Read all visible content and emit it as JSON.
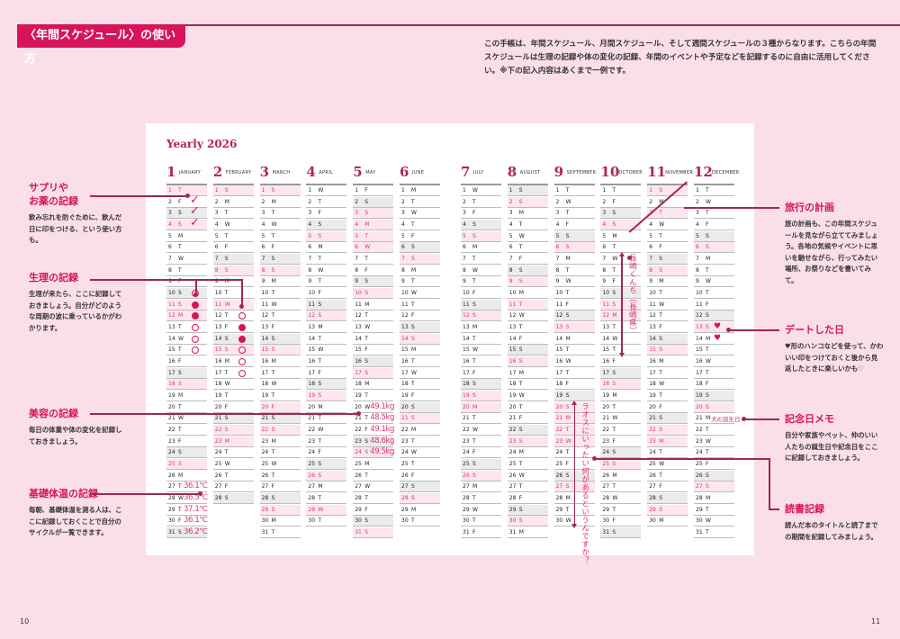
{
  "header": {
    "title": "〈年間スケジュール〉の使い方",
    "intro": "この手帳は、年間スケジュール、月間スケジュール、そして週間スケジュールの３種からなります。こちらの年間スケジュールは生理の記録や体の変化の記録、年間のイベントや予定などを記録するのに自由に活用してください。※下の記入内容はあくまで一例です。"
  },
  "calendar": {
    "title": "Yearly 2026",
    "year": 2026,
    "weekdays": [
      "S",
      "M",
      "T",
      "W",
      "T",
      "F",
      "S"
    ],
    "months": [
      {
        "num": "1",
        "name": "JANUARY"
      },
      {
        "num": "2",
        "name": "FEBRUARY"
      },
      {
        "num": "3",
        "name": "MARCH"
      },
      {
        "num": "4",
        "name": "APRIL"
      },
      {
        "num": "5",
        "name": "MAY"
      },
      {
        "num": "6",
        "name": "JUNE"
      },
      {
        "num": "7",
        "name": "JULY"
      },
      {
        "num": "8",
        "name": "AUGUST"
      },
      {
        "num": "9",
        "name": "SEPTEMBER"
      },
      {
        "num": "10",
        "name": "OCTOBER"
      },
      {
        "num": "11",
        "name": "NOVEMBER"
      },
      {
        "num": "12",
        "name": "DECEMBER"
      }
    ],
    "holidays": [
      "1-1",
      "1-12",
      "2-11",
      "2-23",
      "3-20",
      "4-29",
      "5-3",
      "5-4",
      "5-5",
      "5-6",
      "7-20",
      "8-11",
      "9-21",
      "9-22",
      "9-23",
      "10-12",
      "11-3",
      "11-23"
    ],
    "colors": {
      "accent": "#d7135b",
      "holiday_bg": "#fde6ec",
      "saturday_bg": "#ebebeb",
      "line": "#a0284f"
    }
  },
  "entries": {
    "supplement_checks": [
      "1-2",
      "1-3",
      "1-4"
    ],
    "period_marks": [
      {
        "date": "1-10",
        "filled": false
      },
      {
        "date": "1-11",
        "filled": true
      },
      {
        "date": "1-12",
        "filled": true
      },
      {
        "date": "1-13",
        "filled": false
      },
      {
        "date": "1-14",
        "filled": false
      },
      {
        "date": "1-15",
        "filled": false
      },
      {
        "date": "2-12",
        "filled": false
      },
      {
        "date": "2-13",
        "filled": true
      },
      {
        "date": "2-14",
        "filled": true
      },
      {
        "date": "2-15",
        "filled": false
      },
      {
        "date": "2-16",
        "filled": false
      },
      {
        "date": "2-17",
        "filled": false
      }
    ],
    "weights": [
      {
        "date": "5-20",
        "text": "49.1kg"
      },
      {
        "date": "5-21",
        "text": "48.5kg"
      },
      {
        "date": "5-22",
        "text": "49.1kg"
      },
      {
        "date": "5-23",
        "text": "48.6kg"
      },
      {
        "date": "5-24",
        "text": "49.5kg"
      }
    ],
    "temperatures": [
      {
        "date": "1-27",
        "text": "36.1℃"
      },
      {
        "date": "1-28",
        "text": "36.5℃"
      },
      {
        "date": "1-29",
        "text": "37.1℃"
      },
      {
        "date": "1-30",
        "text": "36.1℃"
      },
      {
        "date": "1-31",
        "text": "36.2℃"
      }
    ],
    "travel": {
      "text": "長崎くんち（長崎県）",
      "from": "10-7",
      "to": "10-15"
    },
    "reading": {
      "text": "ラオスにいったい何があるというんですか？",
      "from": "9-20",
      "to": "9-30"
    },
    "dates_hearts": [
      "12-13",
      "12-14"
    ],
    "anniversary": {
      "date": "12-21",
      "text": "犬の誕生日"
    }
  },
  "left_notes": [
    {
      "title": "サプリや\nお薬の記録",
      "body": "飲み忘れを防ぐために、飲んだ日に印をつける、という使い方も。"
    },
    {
      "title": "生理の記録",
      "body": "生理が来たら、ここに記録しておきましょう。自分がどのような周期の波に乗っているかがわかります。"
    },
    {
      "title": "美容の記録",
      "body": "毎日の体重や体の変化を記録しておきましょう。"
    },
    {
      "title": "基礎体温の記録",
      "body": "毎朝、基礎体温を測る人は、ここに記録しておくことで自分のサイクルが一覧できます。"
    }
  ],
  "right_notes": [
    {
      "title": "旅行の計画",
      "body": "旅の計画も、この年間スケジュールを見ながら立ててみましょう。各地の気候やイベントに思いを馳せながら、行ってみたい場所、お祭りなどを書いてみて。"
    },
    {
      "title": "デートした日",
      "body": "♥形のハンコなどを使って、かわいい印をつけておくと後から見返したときに楽しいかも♡"
    },
    {
      "title": "記念日メモ",
      "body": "自分や家族やペット、仲のいい人たちの誕生日や記念日をここに記録しておきましょう。"
    },
    {
      "title": "読書記録",
      "body": "読んだ本のタイトルと読了までの期間を記録してみましょう。"
    }
  ],
  "pages": {
    "left": "10",
    "right": "11"
  }
}
